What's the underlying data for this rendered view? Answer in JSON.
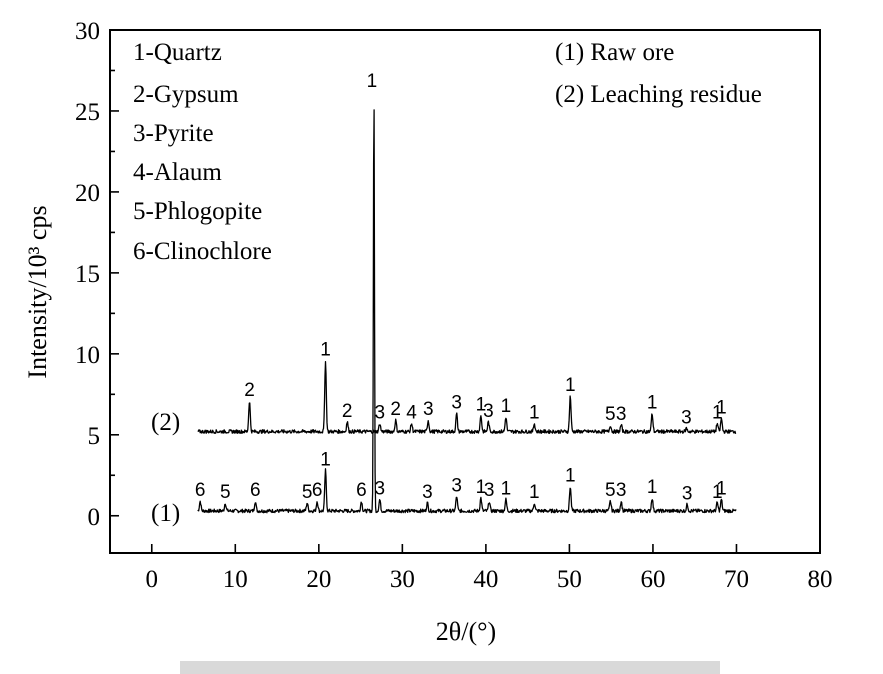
{
  "chart_data": {
    "type": "line",
    "title": "",
    "xlabel": "2θ/(°)",
    "ylabel": "Intensity/10³ cps",
    "xlim": [
      -5,
      80
    ],
    "ylim": [
      -2.3,
      30
    ],
    "x_ticks": [
      0,
      10,
      20,
      30,
      40,
      50,
      60,
      70,
      80
    ],
    "y_ticks": [
      0,
      5,
      10,
      15,
      20,
      25,
      30
    ],
    "phase_legend": [
      "1-Quartz",
      "2-Gypsum",
      "3-Pyrite",
      "4-Alaum",
      "5-Phlogopite",
      "6-Clinochlore"
    ],
    "sample_legend": [
      "(1) Raw ore",
      "(2) Leaching residue"
    ],
    "series": [
      {
        "name": "(1)",
        "baseline": 0.3,
        "x_start": 5.5,
        "x_end": 70,
        "peaks": [
          {
            "x": 5.8,
            "y": 0.9,
            "label": "6"
          },
          {
            "x": 8.8,
            "y": 0.8,
            "label": "5"
          },
          {
            "x": 12.4,
            "y": 0.9,
            "label": "6"
          },
          {
            "x": 18.6,
            "y": 0.8,
            "label": "5"
          },
          {
            "x": 19.8,
            "y": 0.9,
            "label": "6"
          },
          {
            "x": 20.8,
            "y": 2.8,
            "label": "1"
          },
          {
            "x": 25.1,
            "y": 0.9,
            "label": "6"
          },
          {
            "x": 26.6,
            "y": 26.3,
            "label": "1"
          },
          {
            "x": 27.3,
            "y": 1.0,
            "label": "3"
          },
          {
            "x": 33.0,
            "y": 0.8,
            "label": "3"
          },
          {
            "x": 36.5,
            "y": 1.2,
            "label": "3"
          },
          {
            "x": 39.4,
            "y": 1.1,
            "label": "1"
          },
          {
            "x": 40.4,
            "y": 0.9,
            "label": "3"
          },
          {
            "x": 42.4,
            "y": 1.0,
            "label": "1"
          },
          {
            "x": 45.8,
            "y": 0.8,
            "label": "1"
          },
          {
            "x": 50.1,
            "y": 1.8,
            "label": "1"
          },
          {
            "x": 54.9,
            "y": 0.9,
            "label": "5"
          },
          {
            "x": 56.2,
            "y": 0.9,
            "label": "3"
          },
          {
            "x": 59.9,
            "y": 1.1,
            "label": "1"
          },
          {
            "x": 64.1,
            "y": 0.7,
            "label": "3"
          },
          {
            "x": 67.7,
            "y": 0.8,
            "label": "1"
          },
          {
            "x": 68.2,
            "y": 1.0,
            "label": "1"
          }
        ]
      },
      {
        "name": "(2)",
        "baseline": 5.2,
        "x_start": 5.5,
        "x_end": 70,
        "peaks": [
          {
            "x": 11.7,
            "y": 7.1,
            "label": "2"
          },
          {
            "x": 20.8,
            "y": 9.6,
            "label": "1"
          },
          {
            "x": 23.4,
            "y": 5.8,
            "label": "2"
          },
          {
            "x": 27.3,
            "y": 5.7,
            "label": "3"
          },
          {
            "x": 29.2,
            "y": 5.9,
            "label": "2"
          },
          {
            "x": 31.1,
            "y": 5.7,
            "label": "4"
          },
          {
            "x": 33.1,
            "y": 5.9,
            "label": "3"
          },
          {
            "x": 36.5,
            "y": 6.3,
            "label": "3"
          },
          {
            "x": 39.4,
            "y": 6.2,
            "label": "1"
          },
          {
            "x": 40.3,
            "y": 5.8,
            "label": "3"
          },
          {
            "x": 42.4,
            "y": 6.1,
            "label": "1"
          },
          {
            "x": 45.8,
            "y": 5.7,
            "label": "1"
          },
          {
            "x": 50.1,
            "y": 7.4,
            "label": "1"
          },
          {
            "x": 54.9,
            "y": 5.6,
            "label": "5"
          },
          {
            "x": 56.2,
            "y": 5.6,
            "label": "3"
          },
          {
            "x": 59.9,
            "y": 6.3,
            "label": "1"
          },
          {
            "x": 64.0,
            "y": 5.4,
            "label": "3"
          },
          {
            "x": 67.7,
            "y": 5.7,
            "label": "1"
          },
          {
            "x": 68.2,
            "y": 6.0,
            "label": "1"
          }
        ]
      }
    ],
    "top_peak_label": {
      "x": 26.6,
      "y": 26.3,
      "label": "1"
    },
    "grid": false
  }
}
